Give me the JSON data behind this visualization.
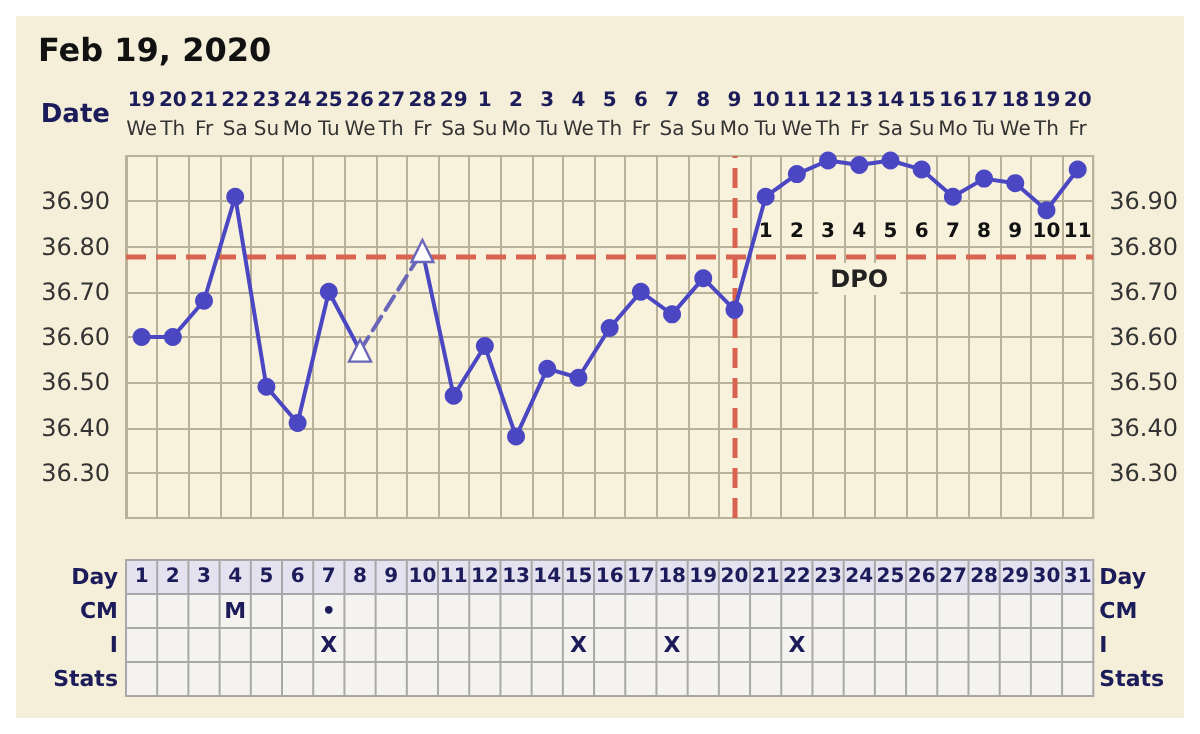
{
  "chart_data": {
    "type": "line",
    "title": "Feb 19, 2020",
    "xlabel": "Date",
    "categories": [
      "19\nWe",
      "20\nTh",
      "21\nFr",
      "22\nSa",
      "23\nSu",
      "24\nMo",
      "25\nTu",
      "26\nWe",
      "27\nTh",
      "28\nFr",
      "29\nSa",
      "1\nSu",
      "2\nMo",
      "3\nTu",
      "4\nWe",
      "5\nTh",
      "6\nFr",
      "7\nSa",
      "8\nSu",
      "9\nMo",
      "10\nTu",
      "11\nWe",
      "12\nTh",
      "13\nFr",
      "14\nSa",
      "15\nSu",
      "16\nMo",
      "17\nTu",
      "18\nWe",
      "19\nTh",
      "20\nFr"
    ],
    "series": [
      {
        "color": "#4b47c2",
        "marker": "circle",
        "line_style": "solid",
        "values": [
          36.6,
          36.6,
          36.68,
          36.91,
          36.49,
          36.41,
          36.7,
          36.57,
          null,
          36.79,
          36.47,
          36.58,
          36.38,
          36.53,
          36.51,
          36.62,
          36.7,
          36.65,
          36.73,
          36.66,
          36.91,
          36.96,
          36.99,
          36.98,
          36.99,
          36.97,
          36.91,
          36.95,
          36.94,
          36.88,
          36.97
        ]
      },
      {
        "color": "#6a66b8",
        "marker": "triangle",
        "line_style": "dashed",
        "values": [
          null,
          null,
          null,
          null,
          null,
          null,
          null,
          36.57,
          null,
          36.79,
          null,
          null,
          null,
          null,
          null,
          null,
          null,
          null,
          null,
          null,
          null,
          null,
          null,
          null,
          null,
          null,
          null,
          null,
          null,
          null,
          null
        ]
      }
    ],
    "ylim": [
      36.2,
      37.0
    ],
    "yticks": [
      {
        "value": 36.3,
        "label": "36.30"
      },
      {
        "value": 36.4,
        "label": "36.40"
      },
      {
        "value": 36.5,
        "label": "36.50"
      },
      {
        "value": 36.6,
        "label": "36.60"
      },
      {
        "value": 36.7,
        "label": "36.70"
      },
      {
        "value": 36.8,
        "label": "36.80"
      },
      {
        "value": 36.9,
        "label": "36.90"
      }
    ],
    "y2lim": [
      36.2,
      37.0
    ],
    "y2ticks": [
      {
        "value": 36.3,
        "label": "36.30"
      },
      {
        "value": 36.4,
        "label": "36.40"
      },
      {
        "value": 36.5,
        "label": "36.50"
      },
      {
        "value": 36.6,
        "label": "36.60"
      },
      {
        "value": 36.7,
        "label": "36.70"
      },
      {
        "value": 36.8,
        "label": "36.80"
      },
      {
        "value": 36.9,
        "label": "36.90"
      }
    ],
    "grid": true,
    "ref_lines": [
      {
        "axis": "y",
        "value": 36.78,
        "color": "#d9634f",
        "line_style": "dashed"
      },
      {
        "axis": "x",
        "value": "9\nMo",
        "color": "#d9634f",
        "line_style": "dashed"
      }
    ],
    "annotations": [
      "DPO",
      "1 2 3 4 5 6 7 8 9 10 11",
      "Day",
      "1 2 3 4 5 6 7 8 9 10 11 12 13 14 15 16 17 18 19 20 21 22 23 24 25 26 27 28 29 30 31",
      "CM",
      "   M   •",
      "I",
      "      X        X   X    X",
      "Stats"
    ]
  }
}
